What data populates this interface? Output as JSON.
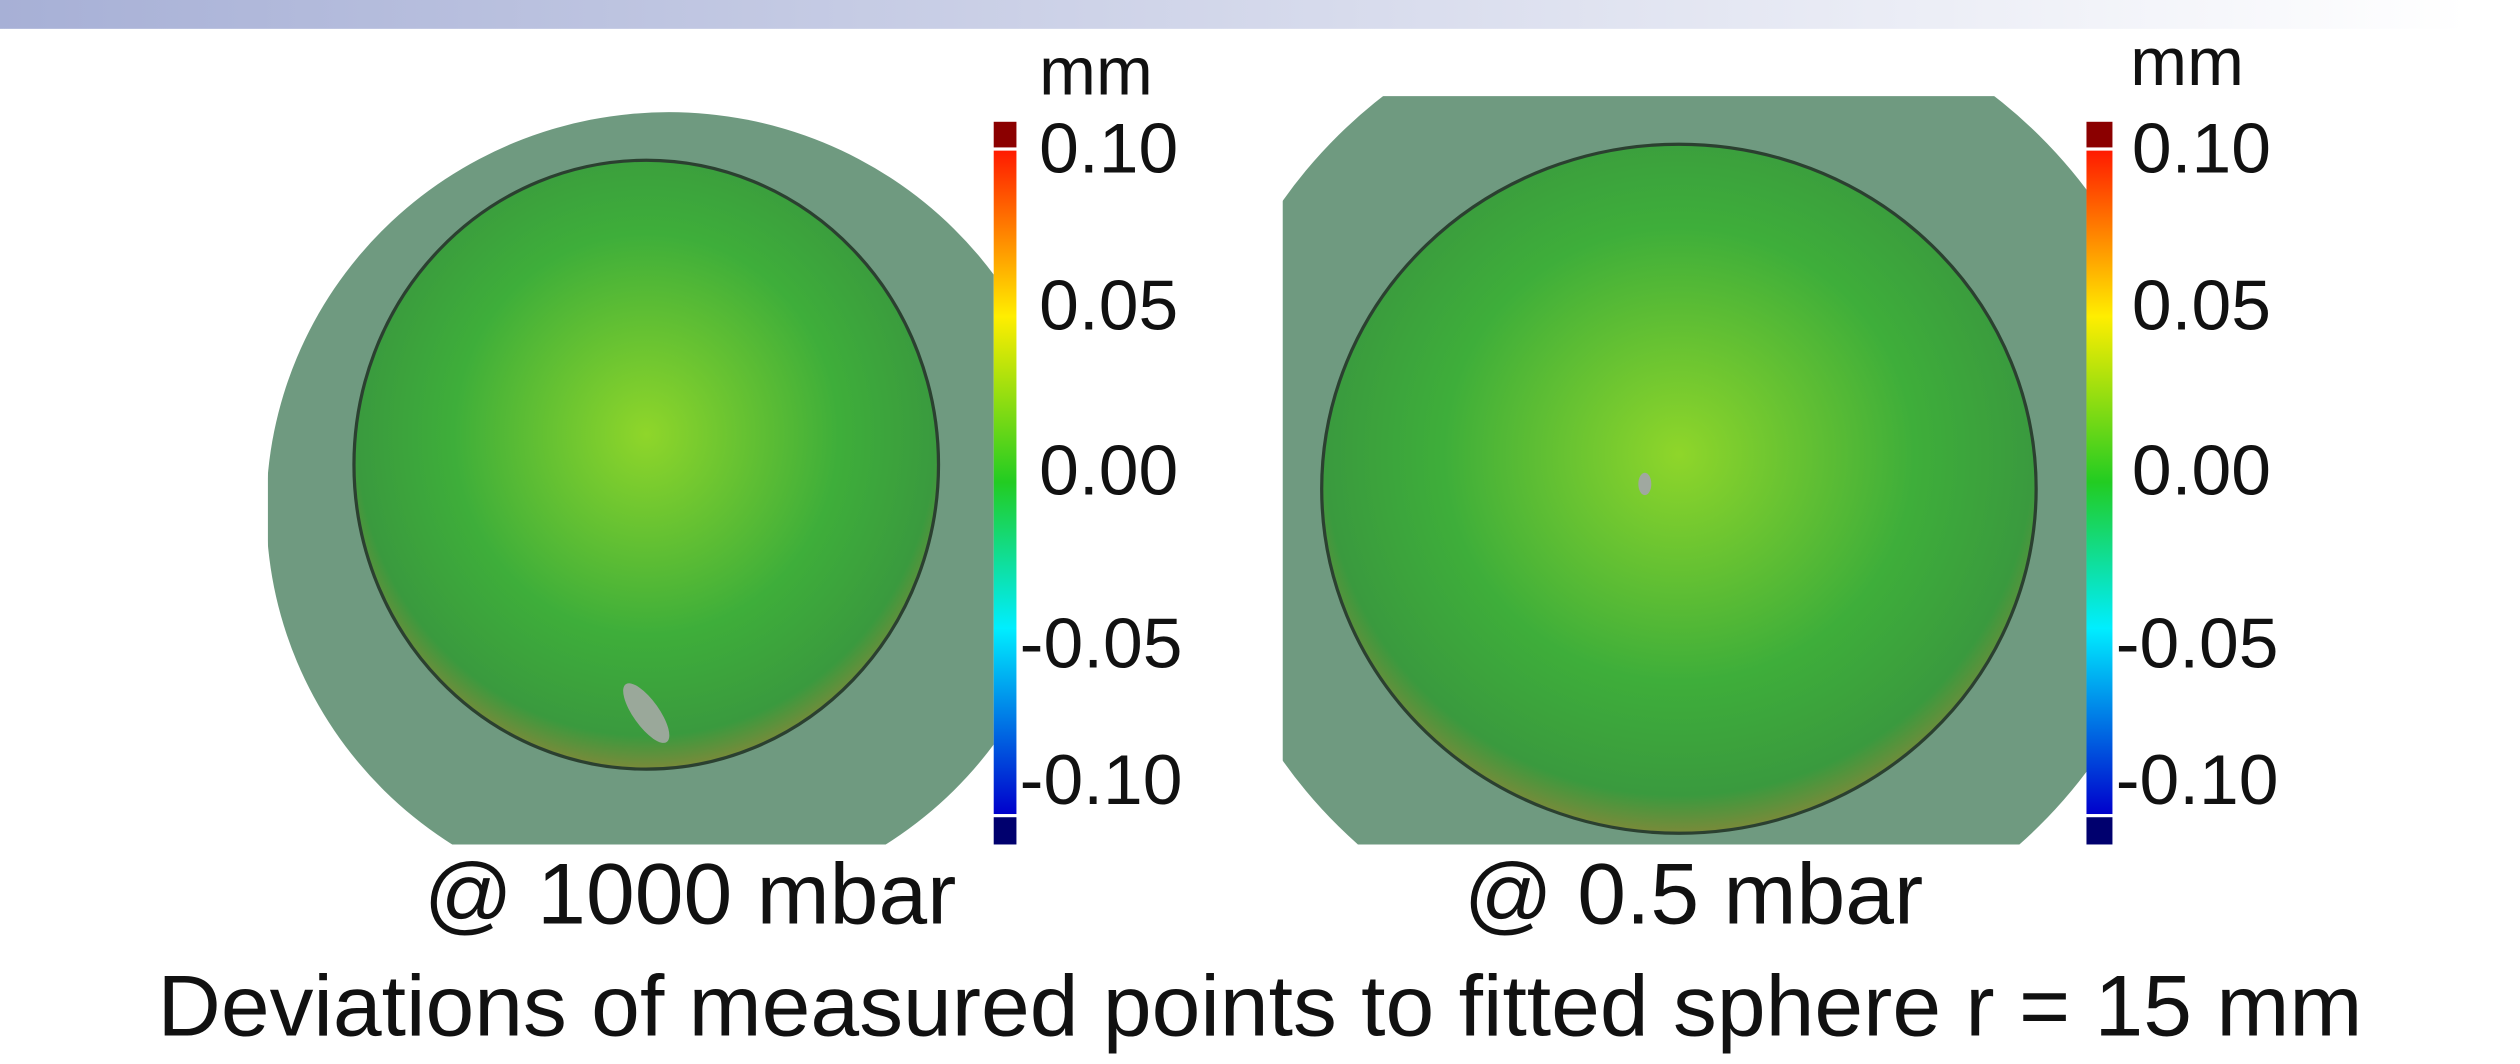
{
  "panels": [
    {
      "label": "@ 1000 mbar",
      "colorbar": {
        "unit": "mm",
        "ticks": [
          "0.10",
          "0.05",
          "0.00",
          "-0.05",
          "-0.10"
        ]
      }
    },
    {
      "label": "@ 0.5 mbar",
      "colorbar": {
        "unit": "mm",
        "ticks": [
          "0.10",
          "0.05",
          "0.00",
          "-0.05",
          "-0.10"
        ]
      }
    }
  ],
  "caption": "Deviations of measured points to fitted sphere r = 15 mm"
}
